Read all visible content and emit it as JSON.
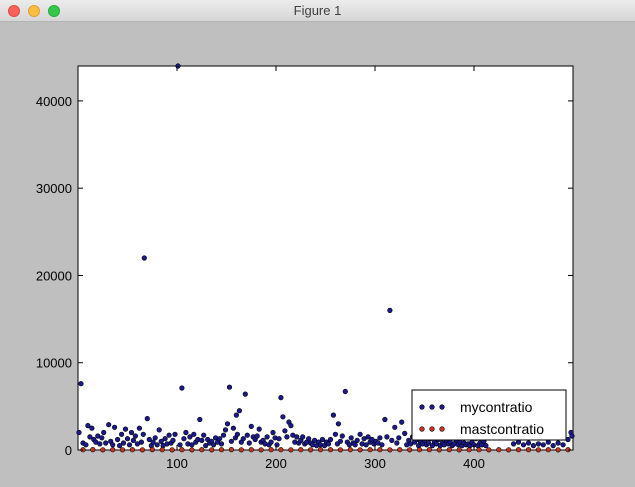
{
  "window": {
    "title": "Figure 1",
    "buttons": [
      "close",
      "minimize",
      "zoom"
    ]
  },
  "chart_data": {
    "type": "scatter",
    "title": "",
    "xlabel": "",
    "ylabel": "",
    "xlim": [
      0,
      500
    ],
    "ylim": [
      0,
      44000
    ],
    "x_ticks": [
      100,
      200,
      300,
      400
    ],
    "x_tick_labels": [
      "100",
      "200",
      "300",
      "400"
    ],
    "y_ticks": [
      0,
      10000,
      20000,
      30000,
      40000
    ],
    "y_tick_labels": [
      "0",
      "10000",
      "20000",
      "30000",
      "40000"
    ],
    "grid": false,
    "legend_position": "lower-right",
    "colors": {
      "mycontratio": "#1a1a8c",
      "mastcontratio": "#c8321e"
    },
    "series": [
      {
        "name": "mycontratio",
        "points": [
          [
            3,
            7600
          ],
          [
            101,
            44000
          ],
          [
            67,
            22000
          ],
          [
            315,
            16000
          ],
          [
            105,
            7100
          ],
          [
            153,
            7200
          ],
          [
            169,
            6400
          ],
          [
            270,
            6700
          ],
          [
            205,
            6000
          ],
          [
            70,
            3600
          ],
          [
            123,
            3500
          ],
          [
            160,
            4000
          ],
          [
            163,
            4500
          ],
          [
            258,
            4000
          ],
          [
            207,
            3800
          ],
          [
            213,
            3200
          ],
          [
            310,
            3500
          ],
          [
            327,
            3200
          ],
          [
            263,
            3000
          ],
          [
            5,
            800
          ],
          [
            8,
            600
          ],
          [
            10,
            2800
          ],
          [
            12,
            1500
          ],
          [
            14,
            2500
          ],
          [
            16,
            1200
          ],
          [
            18,
            900
          ],
          [
            20,
            1600
          ],
          [
            22,
            700
          ],
          [
            24,
            1400
          ],
          [
            26,
            2000
          ],
          [
            28,
            800
          ],
          [
            31,
            2900
          ],
          [
            33,
            1000
          ],
          [
            35,
            600
          ],
          [
            37,
            2600
          ],
          [
            40,
            1200
          ],
          [
            42,
            500
          ],
          [
            44,
            1800
          ],
          [
            46,
            800
          ],
          [
            48,
            2400
          ],
          [
            50,
            1300
          ],
          [
            52,
            600
          ],
          [
            54,
            2000
          ],
          [
            56,
            1100
          ],
          [
            58,
            1600
          ],
          [
            60,
            700
          ],
          [
            62,
            2500
          ],
          [
            64,
            900
          ],
          [
            66,
            1800
          ],
          [
            72,
            1200
          ],
          [
            74,
            500
          ],
          [
            76,
            900
          ],
          [
            78,
            1400
          ],
          [
            80,
            600
          ],
          [
            82,
            2300
          ],
          [
            84,
            1000
          ],
          [
            86,
            500
          ],
          [
            88,
            1300
          ],
          [
            90,
            700
          ],
          [
            92,
            1700
          ],
          [
            94,
            800
          ],
          [
            96,
            1100
          ],
          [
            98,
            1800
          ],
          [
            103,
            600
          ],
          [
            107,
            1300
          ],
          [
            109,
            2000
          ],
          [
            111,
            700
          ],
          [
            113,
            1500
          ],
          [
            115,
            600
          ],
          [
            117,
            1800
          ],
          [
            119,
            900
          ],
          [
            121,
            1200
          ],
          [
            125,
            1100
          ],
          [
            127,
            1700
          ],
          [
            129,
            500
          ],
          [
            131,
            1200
          ],
          [
            133,
            800
          ],
          [
            135,
            1000
          ],
          [
            137,
            600
          ],
          [
            139,
            1400
          ],
          [
            141,
            900
          ],
          [
            143,
            1300
          ],
          [
            145,
            700
          ],
          [
            147,
            1700
          ],
          [
            149,
            2300
          ],
          [
            151,
            3000
          ],
          [
            155,
            1000
          ],
          [
            157,
            2500
          ],
          [
            159,
            1400
          ],
          [
            161,
            1800
          ],
          [
            165,
            900
          ],
          [
            167,
            1300
          ],
          [
            171,
            1700
          ],
          [
            173,
            800
          ],
          [
            175,
            2700
          ],
          [
            177,
            1500
          ],
          [
            179,
            1200
          ],
          [
            181,
            1600
          ],
          [
            183,
            2400
          ],
          [
            185,
            900
          ],
          [
            187,
            1100
          ],
          [
            189,
            700
          ],
          [
            191,
            1500
          ],
          [
            193,
            600
          ],
          [
            195,
            900
          ],
          [
            197,
            2000
          ],
          [
            199,
            1400
          ],
          [
            201,
            600
          ],
          [
            203,
            1300
          ],
          [
            209,
            2200
          ],
          [
            211,
            1500
          ],
          [
            215,
            2800
          ],
          [
            217,
            1700
          ],
          [
            219,
            900
          ],
          [
            221,
            1500
          ],
          [
            223,
            800
          ],
          [
            225,
            1100
          ],
          [
            227,
            1500
          ],
          [
            229,
            700
          ],
          [
            231,
            900
          ],
          [
            233,
            1300
          ],
          [
            235,
            800
          ],
          [
            237,
            600
          ],
          [
            239,
            1100
          ],
          [
            241,
            500
          ],
          [
            243,
            900
          ],
          [
            245,
            600
          ],
          [
            247,
            1200
          ],
          [
            249,
            500
          ],
          [
            251,
            900
          ],
          [
            253,
            700
          ],
          [
            255,
            1200
          ],
          [
            260,
            1800
          ],
          [
            262,
            700
          ],
          [
            265,
            1000
          ],
          [
            267,
            1600
          ],
          [
            272,
            900
          ],
          [
            274,
            600
          ],
          [
            276,
            1400
          ],
          [
            278,
            800
          ],
          [
            280,
            600
          ],
          [
            282,
            1100
          ],
          [
            285,
            1800
          ],
          [
            287,
            700
          ],
          [
            289,
            1300
          ],
          [
            291,
            600
          ],
          [
            293,
            1500
          ],
          [
            295,
            900
          ],
          [
            297,
            1200
          ],
          [
            299,
            700
          ],
          [
            301,
            1000
          ],
          [
            303,
            800
          ],
          [
            305,
            1400
          ],
          [
            307,
            600
          ],
          [
            312,
            1500
          ],
          [
            317,
            1100
          ],
          [
            320,
            2600
          ],
          [
            322,
            800
          ],
          [
            324,
            1400
          ],
          [
            330,
            1900
          ],
          [
            332,
            600
          ],
          [
            334,
            1100
          ],
          [
            336,
            700
          ],
          [
            338,
            1500
          ],
          [
            340,
            900
          ],
          [
            342,
            1200
          ],
          [
            344,
            500
          ],
          [
            346,
            900
          ],
          [
            348,
            700
          ],
          [
            350,
            1100
          ],
          [
            352,
            600
          ],
          [
            354,
            800
          ],
          [
            356,
            1300
          ],
          [
            358,
            500
          ],
          [
            360,
            900
          ],
          [
            362,
            700
          ],
          [
            364,
            1200
          ],
          [
            366,
            500
          ],
          [
            368,
            800
          ],
          [
            370,
            600
          ],
          [
            372,
            1100
          ],
          [
            374,
            700
          ],
          [
            376,
            900
          ],
          [
            378,
            500
          ],
          [
            380,
            700
          ],
          [
            382,
            1100
          ],
          [
            384,
            600
          ],
          [
            386,
            900
          ],
          [
            388,
            500
          ],
          [
            390,
            800
          ],
          [
            392,
            600
          ],
          [
            394,
            700
          ],
          [
            396,
            500
          ],
          [
            398,
            900
          ],
          [
            400,
            600
          ],
          [
            402,
            1300
          ],
          [
            404,
            500
          ],
          [
            406,
            800
          ],
          [
            408,
            600
          ],
          [
            410,
            1000
          ],
          [
            412,
            500
          ],
          [
            440,
            700
          ],
          [
            445,
            900
          ],
          [
            450,
            600
          ],
          [
            455,
            800
          ],
          [
            460,
            500
          ],
          [
            465,
            700
          ],
          [
            470,
            600
          ],
          [
            475,
            900
          ],
          [
            480,
            500
          ],
          [
            485,
            800
          ],
          [
            490,
            600
          ],
          [
            495,
            1200
          ],
          [
            498,
            2000
          ],
          [
            499,
            1600
          ],
          [
            1,
            2000
          ]
        ]
      },
      {
        "name": "mastcontratio",
        "points": [
          [
            5,
            30
          ],
          [
            15,
            50
          ],
          [
            25,
            20
          ],
          [
            35,
            40
          ],
          [
            45,
            25
          ],
          [
            55,
            35
          ],
          [
            65,
            20
          ],
          [
            75,
            45
          ],
          [
            85,
            30
          ],
          [
            95,
            25
          ],
          [
            105,
            40
          ],
          [
            115,
            20
          ],
          [
            125,
            35
          ],
          [
            135,
            25
          ],
          [
            145,
            30
          ],
          [
            155,
            45
          ],
          [
            165,
            20
          ],
          [
            175,
            35
          ],
          [
            185,
            25
          ],
          [
            195,
            40
          ],
          [
            205,
            30
          ],
          [
            215,
            20
          ],
          [
            225,
            35
          ],
          [
            235,
            25
          ],
          [
            245,
            40
          ],
          [
            255,
            30
          ],
          [
            265,
            20
          ],
          [
            275,
            35
          ],
          [
            285,
            25
          ],
          [
            295,
            40
          ],
          [
            305,
            30
          ],
          [
            315,
            20
          ],
          [
            325,
            35
          ],
          [
            335,
            25
          ],
          [
            345,
            40
          ],
          [
            355,
            30
          ],
          [
            365,
            20
          ],
          [
            375,
            35
          ],
          [
            385,
            25
          ],
          [
            395,
            40
          ],
          [
            405,
            30
          ],
          [
            415,
            20
          ],
          [
            425,
            35
          ],
          [
            435,
            25
          ],
          [
            445,
            40
          ],
          [
            455,
            30
          ],
          [
            465,
            20
          ],
          [
            475,
            35
          ],
          [
            485,
            25
          ],
          [
            495,
            40
          ]
        ]
      }
    ]
  }
}
